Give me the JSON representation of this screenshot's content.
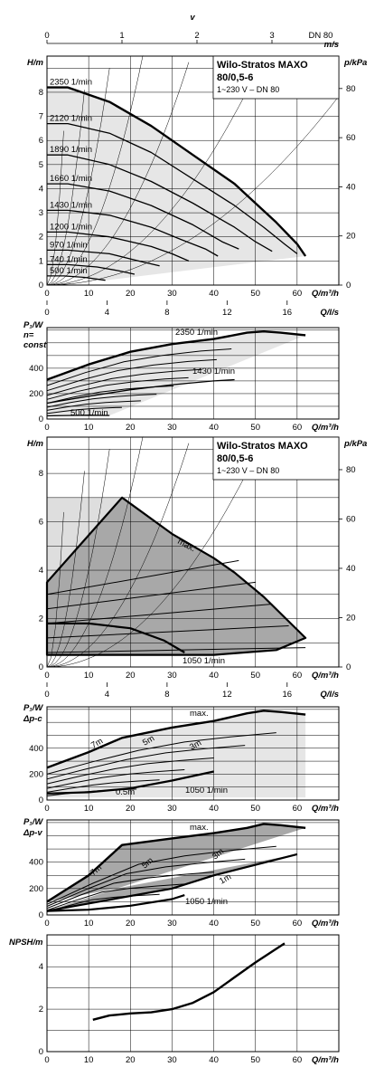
{
  "chart_data": [
    {
      "type": "line",
      "product": {
        "title": "Wilo-Stratos MAXO",
        "model": "80/0,5-6",
        "spec": "1~230 V – DN 80"
      },
      "top_axis_v": {
        "label": "v",
        "unit": "m/s",
        "ticks": [
          "0",
          "1",
          "2",
          "3"
        ],
        "extra": "DN 80"
      },
      "xlabel": "Q/m³/h",
      "ylabel": "H/m",
      "ylabel_right": "p/kPa",
      "xlim": [
        0,
        70
      ],
      "ylim": [
        0,
        9.5
      ],
      "x_ticks": [
        "0",
        "10",
        "20",
        "30",
        "40",
        "50",
        "60"
      ],
      "y_ticks": [
        "0",
        "1",
        "2",
        "3",
        "4",
        "5",
        "6",
        "7",
        "8"
      ],
      "y_right_ticks": [
        "0",
        "20",
        "40",
        "60",
        "80"
      ],
      "bottom_axis_qls": {
        "label": "Q/l/s",
        "ticks": [
          "0",
          "4",
          "8",
          "12",
          "16"
        ]
      },
      "series": [
        {
          "name": "2350 1/min",
          "x": [
            0,
            5,
            15,
            25,
            35,
            45,
            50,
            55,
            60,
            62
          ],
          "y": [
            8.2,
            8.2,
            7.6,
            6.6,
            5.4,
            4.2,
            3.4,
            2.6,
            1.7,
            1.2
          ]
        },
        {
          "name": "2120 1/min",
          "x": [
            0,
            5,
            15,
            25,
            35,
            45,
            52,
            57,
            60
          ],
          "y": [
            6.7,
            6.7,
            6.3,
            5.5,
            4.4,
            3.3,
            2.4,
            1.7,
            1.3
          ]
        },
        {
          "name": "1890 1/min",
          "x": [
            0,
            5,
            15,
            25,
            35,
            45,
            50,
            54
          ],
          "y": [
            5.4,
            5.4,
            5.0,
            4.3,
            3.4,
            2.4,
            1.8,
            1.4
          ]
        },
        {
          "name": "1660 1/min",
          "x": [
            0,
            5,
            15,
            25,
            35,
            42,
            46
          ],
          "y": [
            4.2,
            4.2,
            3.9,
            3.3,
            2.5,
            1.8,
            1.5
          ]
        },
        {
          "name": "1430 1/min",
          "x": [
            0,
            5,
            15,
            25,
            32,
            38,
            41
          ],
          "y": [
            3.1,
            3.1,
            2.9,
            2.4,
            1.9,
            1.5,
            1.2
          ]
        },
        {
          "name": "1200 1/min",
          "x": [
            0,
            5,
            15,
            25,
            30,
            34
          ],
          "y": [
            2.2,
            2.2,
            2.0,
            1.6,
            1.3,
            1.0
          ]
        },
        {
          "name": "970 1/min",
          "x": [
            0,
            5,
            15,
            22,
            27
          ],
          "y": [
            1.45,
            1.45,
            1.3,
            1.0,
            0.8
          ]
        },
        {
          "name": "740 1/min",
          "x": [
            0,
            5,
            12,
            17,
            21
          ],
          "y": [
            0.85,
            0.85,
            0.75,
            0.6,
            0.45
          ]
        },
        {
          "name": "500 1/min",
          "x": [
            0,
            4,
            9,
            14
          ],
          "y": [
            0.38,
            0.38,
            0.32,
            0.2
          ]
        }
      ]
    },
    {
      "type": "line",
      "xlabel": "Q/m³/h",
      "ylabel": "P₁/W",
      "mode": "n= const",
      "xlim": [
        0,
        70
      ],
      "ylim": [
        0,
        720
      ],
      "x_ticks": [
        "0",
        "10",
        "20",
        "30",
        "40",
        "50",
        "60"
      ],
      "y_ticks": [
        "0",
        "200",
        "400"
      ],
      "series": [
        {
          "name": "2350 1/min",
          "x": [
            0,
            10,
            20,
            30,
            40,
            48,
            52,
            56,
            62
          ],
          "y": [
            310,
            430,
            530,
            590,
            630,
            680,
            690,
            680,
            660
          ]
        },
        {
          "name": "1430 1/min",
          "x": [
            0,
            10,
            20,
            30,
            40,
            45
          ],
          "y": [
            125,
            180,
            230,
            270,
            300,
            310
          ]
        },
        {
          "name": "500 1/min",
          "x": [
            0,
            5,
            10,
            15
          ],
          "y": [
            25,
            28,
            30,
            28
          ]
        }
      ]
    },
    {
      "type": "area",
      "product": {
        "title": "Wilo-Stratos MAXO",
        "model": "80/0,5-6",
        "spec": "1~230 V – DN 80"
      },
      "xlabel": "Q/m³/h",
      "ylabel": "H/m",
      "ylabel_right": "p/kPa",
      "xlim": [
        0,
        70
      ],
      "ylim": [
        0,
        9.5
      ],
      "x_ticks": [
        "0",
        "10",
        "20",
        "30",
        "40",
        "50",
        "60"
      ],
      "y_ticks": [
        "0",
        "2",
        "4",
        "6",
        "8"
      ],
      "y_right_ticks": [
        "0",
        "20",
        "40",
        "60",
        "80"
      ],
      "bottom_axis_qls": {
        "label": "Q/l/s",
        "ticks": [
          "0",
          "4",
          "8",
          "12",
          "16"
        ]
      },
      "annotations": [
        "max.",
        "1050 1/min"
      ],
      "series": [
        {
          "name": "max.",
          "x": [
            0,
            18,
            30,
            40,
            45,
            52,
            62
          ],
          "y": [
            7.0,
            7.0,
            5.5,
            4.5,
            3.9,
            2.9,
            1.2
          ]
        },
        {
          "name": "1050 1/min",
          "x": [
            0,
            10,
            20,
            28,
            33
          ],
          "y": [
            1.8,
            1.8,
            1.6,
            1.1,
            0.6
          ]
        }
      ]
    },
    {
      "type": "line",
      "xlabel": "Q/m³/h",
      "ylabel": "P₁/W",
      "mode": "Δp-c",
      "xlim": [
        0,
        70
      ],
      "ylim": [
        0,
        720
      ],
      "x_ticks": [
        "0",
        "10",
        "20",
        "30",
        "40",
        "50",
        "60"
      ],
      "y_ticks": [
        "0",
        "200",
        "400"
      ],
      "annotations": [
        "max.",
        "7m",
        "5m",
        "3m",
        "0.5m",
        "1050 1/min"
      ],
      "series": [
        {
          "name": "max.",
          "x": [
            0,
            10,
            18,
            30,
            40,
            48,
            52,
            56,
            62
          ],
          "y": [
            250,
            370,
            480,
            560,
            610,
            670,
            690,
            680,
            660
          ]
        },
        {
          "name": "1050 1/min",
          "x": [
            0,
            10,
            20,
            30,
            40
          ],
          "y": [
            50,
            60,
            90,
            150,
            220
          ]
        }
      ]
    },
    {
      "type": "area",
      "xlabel": "Q/m³/h",
      "ylabel": "P₁/W",
      "mode": "Δp-v",
      "xlim": [
        0,
        70
      ],
      "ylim": [
        0,
        720
      ],
      "x_ticks": [
        "0",
        "10",
        "20",
        "30",
        "40",
        "50",
        "60"
      ],
      "y_ticks": [
        "0",
        "200",
        "400"
      ],
      "annotations": [
        "max.",
        "7m",
        "5m",
        "3m",
        "1m",
        "1050 1/min"
      ],
      "series": [
        {
          "name": "max.",
          "x": [
            0,
            10,
            18,
            30,
            40,
            48,
            52,
            56,
            62
          ],
          "y": [
            100,
            300,
            530,
            580,
            620,
            660,
            690,
            680,
            660
          ]
        },
        {
          "name": "1050 1/min",
          "x": [
            0,
            10,
            20,
            30,
            33
          ],
          "y": [
            30,
            40,
            70,
            120,
            150
          ]
        }
      ]
    },
    {
      "type": "line",
      "xlabel": "Q/m³/h",
      "ylabel": "NPSH/m",
      "xlim": [
        0,
        70
      ],
      "ylim": [
        0,
        5.5
      ],
      "x_ticks": [
        "0",
        "10",
        "20",
        "30",
        "40",
        "50",
        "60"
      ],
      "y_ticks": [
        "0",
        "2",
        "4"
      ],
      "series": [
        {
          "name": "",
          "x": [
            11,
            15,
            20,
            25,
            30,
            35,
            40,
            45,
            50,
            57
          ],
          "y": [
            1.5,
            1.7,
            1.8,
            1.85,
            2.0,
            2.3,
            2.8,
            3.5,
            4.2,
            5.1
          ]
        }
      ]
    }
  ]
}
